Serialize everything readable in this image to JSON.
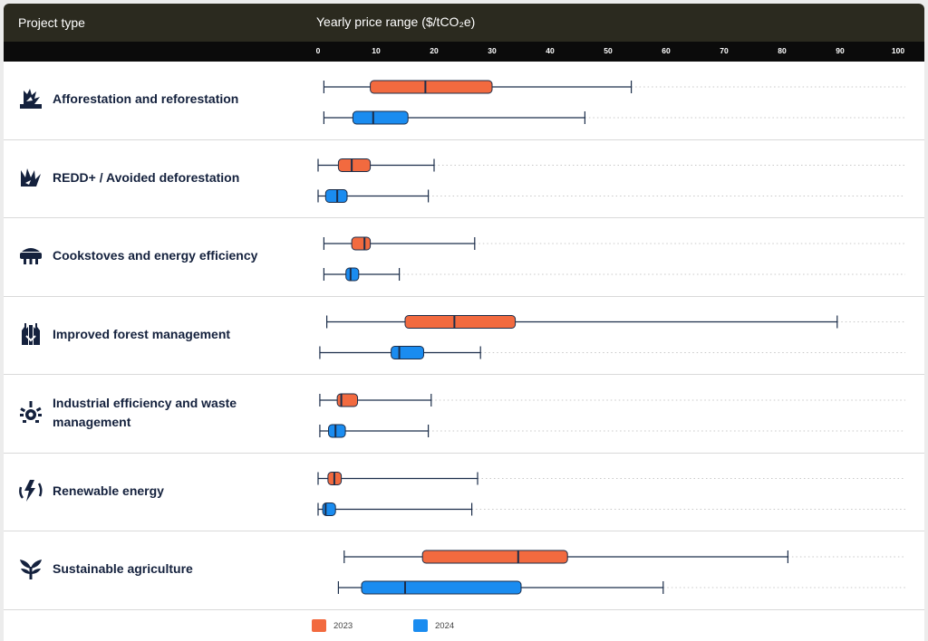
{
  "header": {
    "project_type": "Project type",
    "price_range": "Yearly price range ($/tCO₂e)"
  },
  "colors": {
    "header_bg": "#2b2a1f",
    "tick_bg": "#0b0b0b",
    "series_2023": "#f26a3f",
    "series_2024": "#1a8cf0",
    "line": "#1b2d4a"
  },
  "chart_data": {
    "type": "box",
    "xlim": [
      0,
      100
    ],
    "ticks": [
      "0",
      "10",
      "20",
      "30",
      "40",
      "50",
      "60",
      "70",
      "80",
      "90",
      "100"
    ],
    "grid": "dotted guides to the right of each whisker",
    "legend": [
      "2023",
      "2024"
    ],
    "categories": [
      {
        "name": "Afforestation and reforestation",
        "icon": "afforestation-icon",
        "boxes": [
          {
            "year": "2023",
            "min": 1,
            "q1": 9,
            "median": 18.5,
            "q3": 30,
            "max": 54
          },
          {
            "year": "2024",
            "min": 1,
            "q1": 6,
            "median": 9.5,
            "q3": 15.5,
            "max": 46
          }
        ]
      },
      {
        "name": "REDD+ / Avoided deforestation",
        "icon": "redd-icon",
        "boxes": [
          {
            "year": "2023",
            "min": 0,
            "q1": 3.5,
            "median": 5.8,
            "q3": 9,
            "max": 20
          },
          {
            "year": "2024",
            "min": 0,
            "q1": 1.3,
            "median": 3.3,
            "q3": 5,
            "max": 19
          }
        ]
      },
      {
        "name": "Cookstoves and energy efficiency",
        "icon": "cookstove-icon",
        "boxes": [
          {
            "year": "2023",
            "min": 1,
            "q1": 5.8,
            "median": 8,
            "q3": 9,
            "max": 27
          },
          {
            "year": "2024",
            "min": 1,
            "q1": 4.8,
            "median": 5.6,
            "q3": 7,
            "max": 14
          }
        ]
      },
      {
        "name": "Improved forest management",
        "icon": "forest-management-icon",
        "boxes": [
          {
            "year": "2023",
            "min": 1.5,
            "q1": 15,
            "median": 23.5,
            "q3": 34,
            "max": 89.5
          },
          {
            "year": "2024",
            "min": 0.3,
            "q1": 12.6,
            "median": 14,
            "q3": 18.2,
            "max": 28
          }
        ]
      },
      {
        "name": "Industrial efficiency and waste management",
        "icon": "industrial-icon",
        "boxes": [
          {
            "year": "2023",
            "min": 0.3,
            "q1": 3.3,
            "median": 4,
            "q3": 6.8,
            "max": 19.5
          },
          {
            "year": "2024",
            "min": 0.3,
            "q1": 1.8,
            "median": 3,
            "q3": 4.7,
            "max": 19
          }
        ]
      },
      {
        "name": "Renewable energy",
        "icon": "renewable-icon",
        "boxes": [
          {
            "year": "2023",
            "min": 0,
            "q1": 1.7,
            "median": 2.8,
            "q3": 4,
            "max": 27.5
          },
          {
            "year": "2024",
            "min": 0,
            "q1": 0.8,
            "median": 1.3,
            "q3": 3,
            "max": 26.5
          }
        ]
      },
      {
        "name": "Sustainable agriculture",
        "icon": "agriculture-icon",
        "boxes": [
          {
            "year": "2023",
            "min": 4.5,
            "q1": 18,
            "median": 34.5,
            "q3": 43,
            "max": 81
          },
          {
            "year": "2024",
            "min": 3.5,
            "q1": 7.5,
            "median": 15,
            "q3": 35,
            "max": 59.5
          }
        ]
      }
    ]
  }
}
